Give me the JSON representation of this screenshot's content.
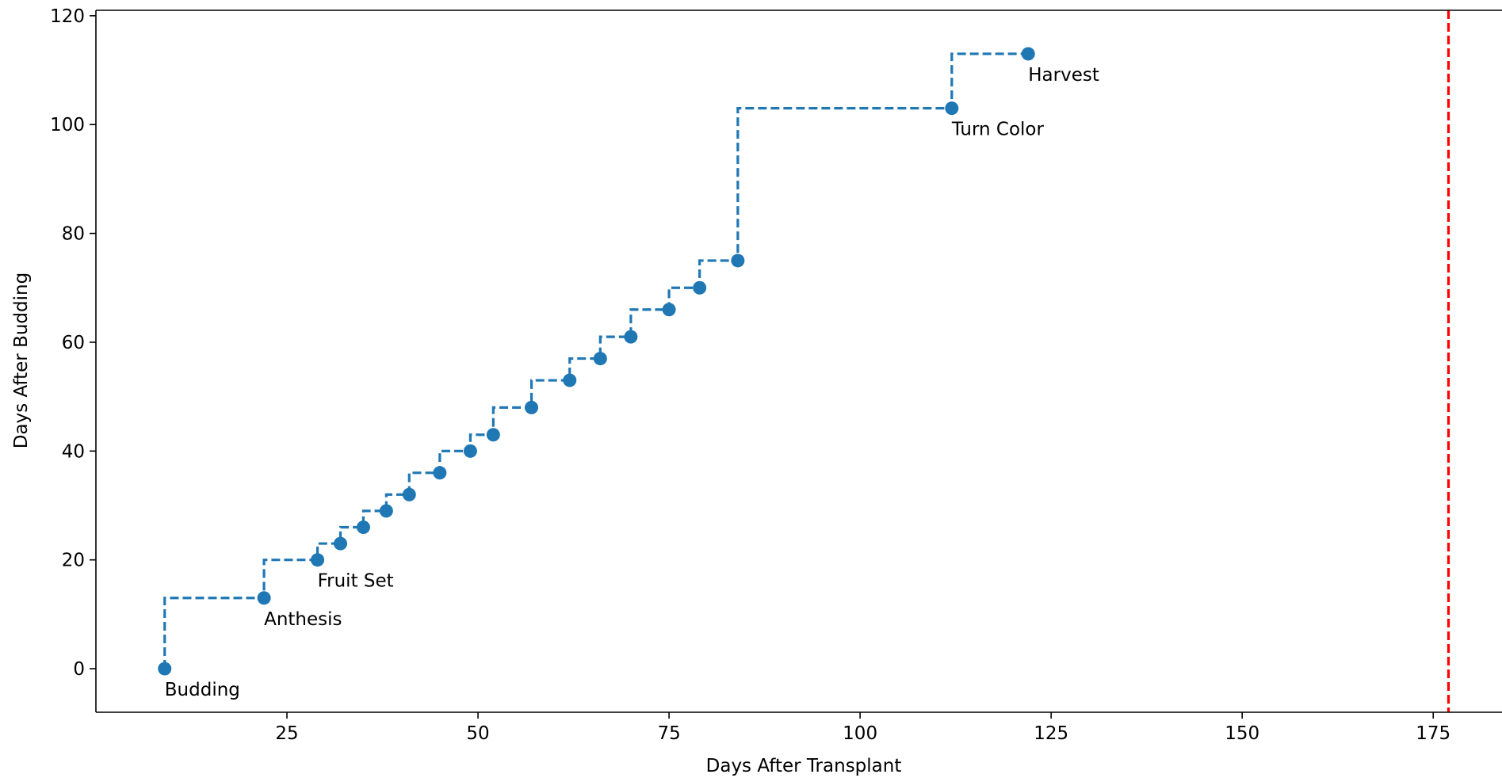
{
  "chart_data": {
    "type": "line",
    "title": "",
    "xlabel": "Days After Transplant",
    "ylabel": "Days After Budding",
    "xlim": [
      0,
      184
    ],
    "ylim": [
      -8,
      121
    ],
    "x_ticks": [
      25,
      50,
      75,
      100,
      125,
      150,
      175
    ],
    "y_ticks": [
      0,
      20,
      40,
      60,
      80,
      100,
      120
    ],
    "grid": false,
    "legend": "none",
    "series": [
      {
        "color": "#1f77b4",
        "line_style": "dashed",
        "step": "post",
        "marker": "circle",
        "points": [
          {
            "x": 9,
            "y": 0,
            "label": "Budding"
          },
          {
            "x": 22,
            "y": 13,
            "label": "Anthesis"
          },
          {
            "x": 29,
            "y": 20,
            "label": "Fruit Set"
          },
          {
            "x": 32,
            "y": 23,
            "label": ""
          },
          {
            "x": 35,
            "y": 26,
            "label": ""
          },
          {
            "x": 38,
            "y": 29,
            "label": ""
          },
          {
            "x": 41,
            "y": 32,
            "label": ""
          },
          {
            "x": 45,
            "y": 36,
            "label": ""
          },
          {
            "x": 49,
            "y": 40,
            "label": ""
          },
          {
            "x": 52,
            "y": 43,
            "label": ""
          },
          {
            "x": 57,
            "y": 48,
            "label": ""
          },
          {
            "x": 62,
            "y": 53,
            "label": ""
          },
          {
            "x": 66,
            "y": 57,
            "label": ""
          },
          {
            "x": 70,
            "y": 61,
            "label": ""
          },
          {
            "x": 75,
            "y": 66,
            "label": ""
          },
          {
            "x": 79,
            "y": 70,
            "label": ""
          },
          {
            "x": 84,
            "y": 75,
            "label": ""
          },
          {
            "x": 112,
            "y": 103,
            "label": "Turn Color"
          },
          {
            "x": 122,
            "y": 113,
            "label": "Harvest"
          }
        ]
      }
    ],
    "vertical_line": {
      "x": 177,
      "color": "#ff0000",
      "line_style": "dashed"
    }
  }
}
